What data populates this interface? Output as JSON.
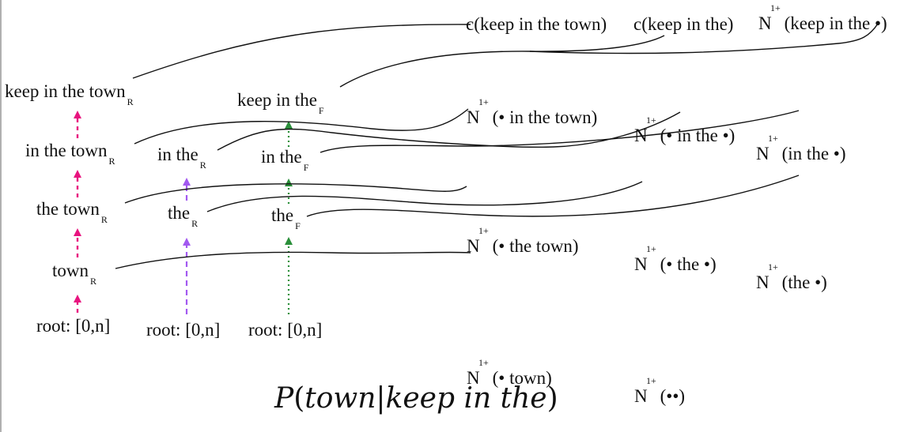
{
  "colors": {
    "pink": "#e8137f",
    "purple": "#a259f0",
    "green": "#2a8f3a",
    "line": "#111111"
  },
  "nodes": {
    "col1": {
      "root": "root: [0,n]",
      "town": "town",
      "town_sub": "R",
      "the_town": "the town",
      "the_town_sub": "R",
      "in_the_town": "in the town",
      "in_the_town_sub": "R",
      "keep_in_the_town": "keep in the town",
      "keep_in_the_town_sub": "R"
    },
    "col2": {
      "root": "root: [0,n]",
      "the": "the",
      "the_sub": "R",
      "in_the": "in the",
      "in_the_sub": "R"
    },
    "col3": {
      "root": "root: [0,n]",
      "the": "the",
      "the_sub": "F",
      "in_the": "in the",
      "in_the_sub": "F",
      "keep_in_the": "keep in the",
      "keep_in_the_sub": "F"
    }
  },
  "counts": {
    "c_keep_in_the_town": "c(keep in the town)",
    "c_keep_in_the": "c(keep in the)",
    "n_sym": "N",
    "n_sup": "1+",
    "n_keep_in_the_dot": "(keep in the •)",
    "n_dot_in_the_town": "(• in the town)",
    "n_dot_in_the_dot": "(• in the •)",
    "n_in_the_dot": "(in the •)",
    "n_dot_the_town": "(• the town)",
    "n_dot_the_dot": "(• the •)",
    "n_the_dot": "(the •)",
    "n_dot_town": "(• town)",
    "n_dot_dot": "(••)"
  },
  "formula": {
    "p": "P",
    "open": "(",
    "word": "town",
    "bar": "|",
    "given": "keep in the",
    "close": ")"
  }
}
